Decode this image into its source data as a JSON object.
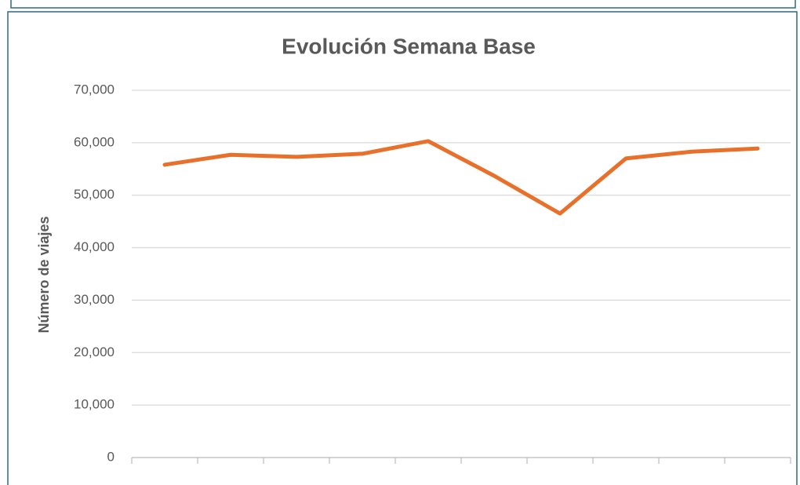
{
  "chart_data": {
    "type": "line",
    "title": "Evolución Semana Base",
    "y_label": "Número de viajes",
    "categories": [
      null,
      null,
      null,
      null,
      null,
      null,
      null,
      null,
      null,
      null
    ],
    "series": [
      {
        "name": null,
        "color": "#e8702a",
        "values": [
          55800,
          57700,
          57300,
          57900,
          60300,
          53700,
          46500,
          57000,
          58300,
          58900
        ]
      }
    ],
    "ylim": [
      0,
      70000
    ],
    "yticks": [
      0,
      {
        "value": 10000,
        "label": "10,000"
      },
      {
        "value": 20000,
        "label": "20,000"
      },
      {
        "value": 30000,
        "label": "30,000"
      },
      {
        "value": 40000,
        "label": "40,000"
      },
      {
        "value": 50000,
        "label": "50,000"
      },
      {
        "value": 60000,
        "label": "60,000"
      },
      {
        "value": 70000,
        "label": "70,000"
      }
    ],
    "grid": true
  }
}
